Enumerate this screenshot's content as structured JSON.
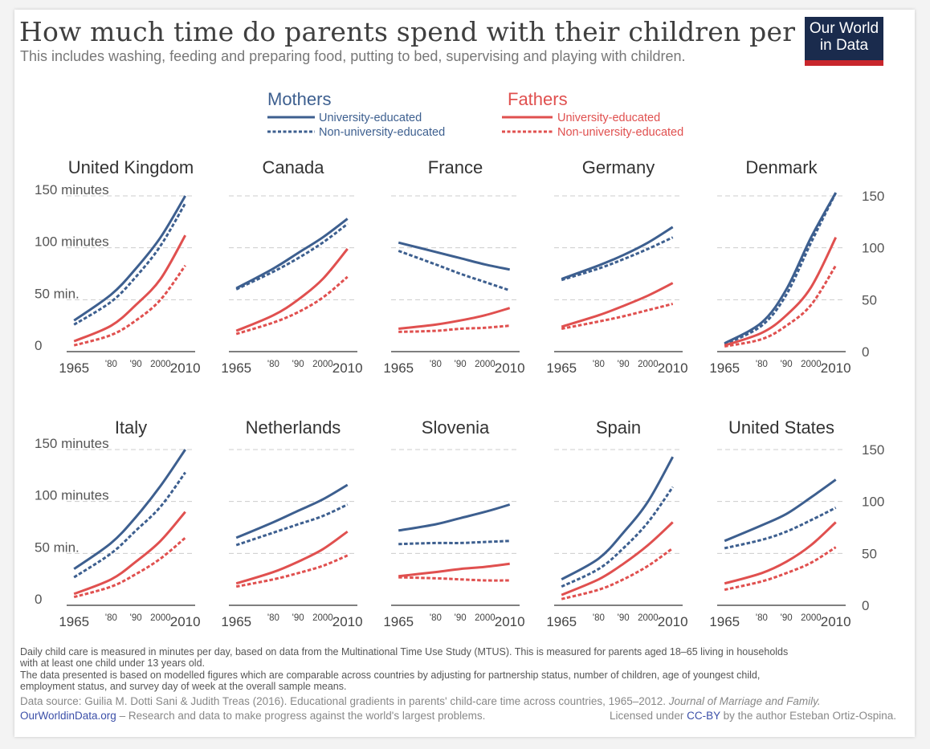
{
  "header": {
    "title": "How much time do parents spend with their children per day?",
    "subtitle": "This includes washing, feeding and preparing food, putting to bed, supervising and playing with children.",
    "logo_line1": "Our World",
    "logo_line2": "in Data"
  },
  "colors": {
    "mothers": "#3d5f8f",
    "fathers": "#e0504f",
    "grid": "#cccccc",
    "axis": "#555555"
  },
  "legend": {
    "mothers_title": "Mothers",
    "fathers_title": "Fathers",
    "university": "University-educated",
    "non_university": "Non-university-educated"
  },
  "chart_data": {
    "type": "line",
    "x_ticks": [
      "1965",
      "'80",
      "'90",
      "2000",
      "2010"
    ],
    "x_tick_values": [
      1965,
      1980,
      1990,
      2000,
      2010
    ],
    "xlim": [
      1962,
      2014
    ],
    "ylim": [
      0,
      150
    ],
    "left_axis_labels": [
      "150 minutes",
      "100 minutes",
      "50 min.",
      "0"
    ],
    "right_axis_labels": [
      "150",
      "100",
      "50",
      "0"
    ],
    "y_label_values": [
      150,
      100,
      50,
      0
    ],
    "x_sample_years": [
      1965,
      1980,
      1990,
      2000,
      2010
    ],
    "series_names": [
      "Mothers, University-educated",
      "Mothers, Non-university-educated",
      "Fathers, University-educated",
      "Fathers, Non-university-educated"
    ],
    "countries": [
      {
        "name": "United Kingdom",
        "series": {
          "mu": [
            30,
            55,
            80,
            110,
            150
          ],
          "mn": [
            26,
            48,
            72,
            102,
            143
          ],
          "fu": [
            10,
            25,
            45,
            70,
            112
          ],
          "fn": [
            6,
            16,
            30,
            50,
            83
          ]
        }
      },
      {
        "name": "Canada",
        "series": {
          "mu": [
            61,
            80,
            95,
            110,
            128
          ],
          "mn": [
            60,
            77,
            90,
            105,
            123
          ],
          "fu": [
            20,
            35,
            50,
            70,
            99
          ],
          "fn": [
            17,
            28,
            38,
            52,
            72
          ]
        }
      },
      {
        "name": "France",
        "series": {
          "mu": [
            105,
            96,
            90,
            84,
            79
          ],
          "mn": [
            97,
            84,
            75,
            67,
            59
          ],
          "fu": [
            22,
            26,
            30,
            35,
            42
          ],
          "fn": [
            19,
            20,
            22,
            23,
            25
          ]
        }
      },
      {
        "name": "Germany",
        "series": {
          "mu": [
            70,
            83,
            93,
            105,
            120
          ],
          "mn": [
            69,
            80,
            89,
            99,
            110
          ],
          "fu": [
            24,
            35,
            44,
            54,
            66
          ],
          "fn": [
            22,
            29,
            34,
            40,
            46
          ]
        }
      },
      {
        "name": "Denmark",
        "series": {
          "mu": [
            8,
            28,
            60,
            110,
            160
          ],
          "mn": [
            7,
            25,
            55,
            105,
            160
          ],
          "fu": [
            6,
            18,
            35,
            62,
            110
          ],
          "fn": [
            5,
            12,
            25,
            45,
            83
          ]
        }
      },
      {
        "name": "Italy",
        "series": {
          "mu": [
            35,
            60,
            85,
            115,
            150
          ],
          "mn": [
            27,
            50,
            72,
            95,
            128
          ],
          "fu": [
            11,
            25,
            42,
            62,
            90
          ],
          "fn": [
            8,
            18,
            30,
            45,
            65
          ]
        }
      },
      {
        "name": "Netherlands",
        "series": {
          "mu": [
            65,
            80,
            91,
            102,
            116
          ],
          "mn": [
            58,
            70,
            78,
            86,
            97
          ],
          "fu": [
            21,
            32,
            42,
            54,
            71
          ],
          "fn": [
            18,
            25,
            31,
            38,
            48
          ]
        }
      },
      {
        "name": "Slovenia",
        "series": {
          "mu": [
            72,
            78,
            84,
            90,
            97
          ],
          "mn": [
            59,
            60,
            60,
            61,
            62
          ],
          "fu": [
            28,
            32,
            35,
            37,
            40
          ],
          "fn": [
            27,
            26,
            25,
            24,
            24
          ]
        }
      },
      {
        "name": "Spain",
        "series": {
          "mu": [
            25,
            45,
            70,
            100,
            143
          ],
          "mn": [
            18,
            35,
            55,
            80,
            114
          ],
          "fu": [
            10,
            25,
            40,
            58,
            80
          ],
          "fn": [
            6,
            15,
            25,
            38,
            55
          ]
        }
      },
      {
        "name": "United States",
        "series": {
          "mu": [
            62,
            77,
            88,
            104,
            121
          ],
          "mn": [
            55,
            63,
            71,
            82,
            94
          ],
          "fu": [
            21,
            31,
            42,
            58,
            80
          ],
          "fn": [
            15,
            23,
            31,
            41,
            56
          ]
        }
      }
    ]
  },
  "footer": {
    "note1": "Daily child care is measured in minutes per day, based on data from the Multinational Time Use Study (MTUS). This is measured for parents aged 18–65 living in households",
    "note1b": "with at least one child under 13 years old.",
    "note2": "The data presented is based on modelled figures which are comparable across countries by adjusting for partnership status, number of children, age of youngest child,",
    "note2b": "employment status, and survey day of week at the overall sample means.",
    "source_prefix": "Data source: Guilia M. Dotti Sani & Judith Treas (2016). Educational gradients in parents' child-care time across countries, 1965–2012.",
    "source_journal": "Journal of Marriage and Family.",
    "owid_link": "OurWorldinData.org",
    "owid_tagline": "– Research and data to make progress against the world's largest problems.",
    "license_prefix": "Licensed under",
    "license_link": "CC-BY",
    "license_suffix": "by the author Esteban Ortiz-Ospina."
  }
}
